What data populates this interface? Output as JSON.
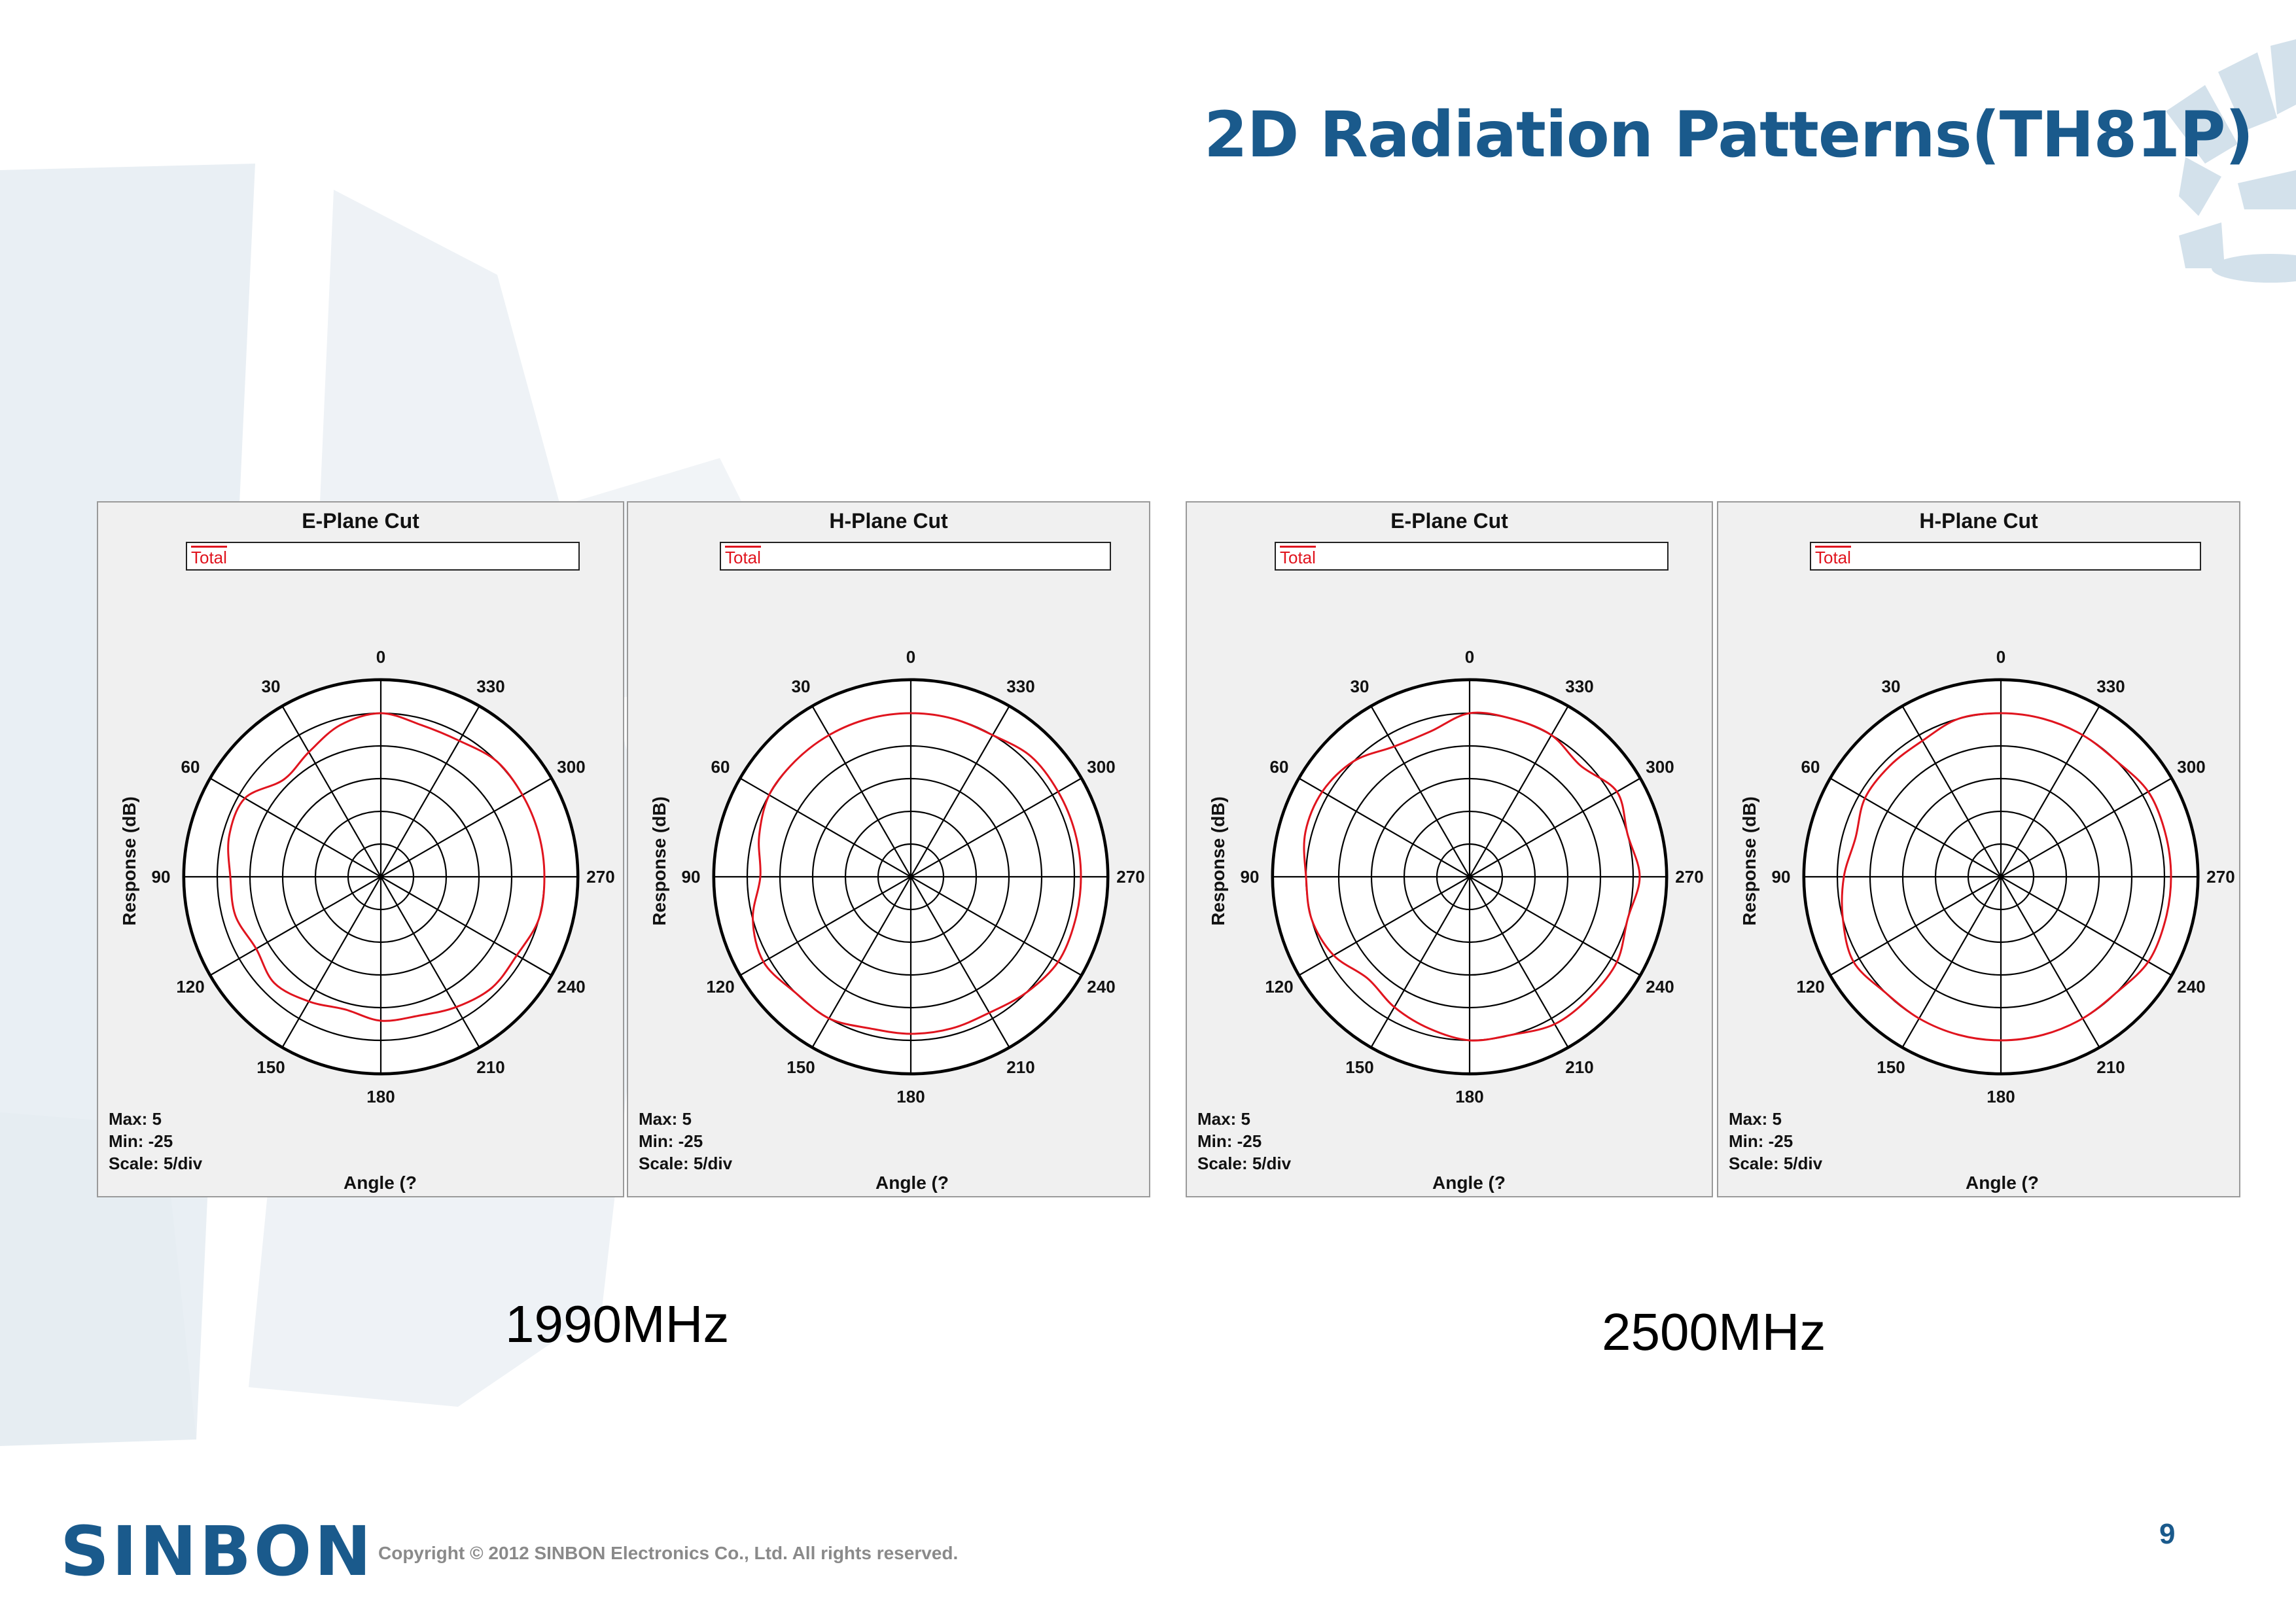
{
  "page": {
    "title": "2D Radiation Patterns(TH81P)",
    "page_number": "9",
    "logo_text": "SINBON",
    "copyright": "Copyright © 2012 SINBON Electronics Co., Ltd. All rights reserved.",
    "colors": {
      "title": "#1a5a8c",
      "trace": "#e0141e",
      "panel_bg": "#f0f0f0"
    }
  },
  "groups": [
    {
      "frequency_label": "1990MHz"
    },
    {
      "frequency_label": "2500MHz"
    }
  ],
  "chart_data": [
    {
      "type": "polar",
      "title": "E-Plane Cut",
      "legend": [
        "Total"
      ],
      "ylabel": "Response  (dB)",
      "xlabel": "Angle  (?",
      "stats": {
        "max": "Max: 5",
        "min": "Min: -25",
        "scale": "Scale: 5/div"
      },
      "angle_ticks": [
        "0",
        "30",
        "60",
        "90",
        "120",
        "150",
        "180",
        "210",
        "240",
        "270",
        "300",
        "330"
      ],
      "rlim": [
        -25,
        5
      ],
      "series": [
        {
          "name": "Total",
          "angles": [
            0,
            15,
            30,
            45,
            60,
            75,
            90,
            105,
            120,
            135,
            150,
            165,
            180,
            195,
            210,
            225,
            240,
            255,
            270,
            285,
            300,
            315,
            330,
            345
          ],
          "values": [
            0,
            -1,
            -3,
            -4,
            -1,
            -1,
            -2,
            -2,
            -3,
            -2,
            -3,
            -4,
            -3,
            -3,
            -2,
            -1,
            -1,
            0,
            0,
            0,
            0,
            0,
            -1,
            -1
          ]
        }
      ]
    },
    {
      "type": "polar",
      "title": "H-Plane Cut",
      "legend": [
        "Total"
      ],
      "ylabel": "Response  (dB)",
      "xlabel": "Angle  (?",
      "stats": {
        "max": "Max: 5",
        "min": "Min: -25",
        "scale": "Scale: 5/div"
      },
      "angle_ticks": [
        "0",
        "30",
        "60",
        "90",
        "120",
        "150",
        "180",
        "210",
        "240",
        "270",
        "300",
        "330"
      ],
      "rlim": [
        -25,
        5
      ],
      "series": [
        {
          "name": "Total",
          "angles": [
            0,
            15,
            30,
            45,
            60,
            75,
            90,
            105,
            120,
            135,
            150,
            165,
            180,
            195,
            210,
            225,
            240,
            255,
            270,
            285,
            300,
            315,
            330,
            345
          ],
          "values": [
            0,
            0,
            0,
            0,
            0,
            -1,
            -2,
            0,
            1,
            0,
            0,
            -1,
            -1,
            -1,
            -1,
            0,
            1,
            1,
            1,
            1,
            1,
            1,
            0,
            0
          ]
        }
      ]
    },
    {
      "type": "polar",
      "title": "E-Plane Cut",
      "legend": [
        "Total"
      ],
      "ylabel": "Response  (dB)",
      "xlabel": "Angle  (?",
      "stats": {
        "max": "Max: 5",
        "min": "Min: -25",
        "scale": "Scale: 5/div"
      },
      "angle_ticks": [
        "0",
        "30",
        "60",
        "90",
        "120",
        "150",
        "180",
        "210",
        "240",
        "270",
        "300",
        "330"
      ],
      "rlim": [
        -25,
        5
      ],
      "series": [
        {
          "name": "Total",
          "angles": [
            0,
            15,
            30,
            45,
            60,
            75,
            90,
            105,
            120,
            135,
            150,
            165,
            180,
            195,
            210,
            225,
            240,
            255,
            270,
            285,
            300,
            315,
            330,
            345
          ],
          "values": [
            0,
            -2,
            -2,
            0,
            1,
            1,
            0,
            0,
            -1,
            -3,
            -2,
            -1,
            0,
            0,
            1,
            1,
            1,
            0,
            1,
            0,
            1,
            -1,
            0,
            0
          ]
        }
      ]
    },
    {
      "type": "polar",
      "title": "H-Plane Cut",
      "legend": [
        "Total"
      ],
      "ylabel": "Response  (dB)",
      "xlabel": "Angle  (?",
      "stats": {
        "max": "Max: 5",
        "min": "Min: -25",
        "scale": "Scale: 5/div"
      },
      "angle_ticks": [
        "0",
        "30",
        "60",
        "90",
        "120",
        "150",
        "180",
        "210",
        "240",
        "270",
        "300",
        "330"
      ],
      "rlim": [
        -25,
        5
      ],
      "series": [
        {
          "name": "Total",
          "angles": [
            0,
            15,
            30,
            45,
            60,
            75,
            90,
            105,
            120,
            135,
            150,
            165,
            180,
            195,
            210,
            225,
            240,
            255,
            270,
            285,
            300,
            315,
            330,
            345
          ],
          "values": [
            0,
            0,
            -1,
            -1,
            -1,
            -2,
            -1,
            0,
            1,
            0,
            0,
            0,
            0,
            0,
            0,
            0,
            1,
            1,
            1,
            1,
            1,
            0,
            0,
            0
          ]
        }
      ]
    }
  ]
}
